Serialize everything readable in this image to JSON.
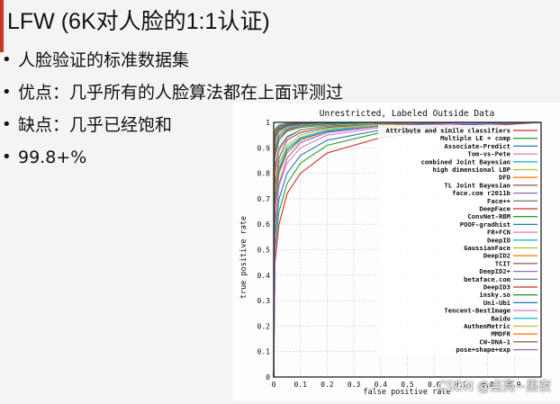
{
  "slide": {
    "title": "LFW (6K对人脸的1:1认证)",
    "bullets": [
      "人脸验证的标准数据集",
      "优点：几乎所有的人脸算法都在上面评测过",
      "缺点：几乎已经饱和",
      "99.8+%"
    ],
    "bullet_symbol": "•",
    "accent_color": "#c0392b"
  },
  "chart_data": {
    "type": "line",
    "title": "Unrestricted, Labeled Outside Data",
    "xlabel": "false positive rate",
    "ylabel": "true positive rate",
    "xlim": [
      0,
      1
    ],
    "ylim": [
      0,
      1
    ],
    "x_ticks": [
      "0",
      "0.1",
      "0.2",
      "0.3",
      "0.4",
      "0.5",
      "0.6",
      "0.7",
      "0.8",
      "0.9",
      "1"
    ],
    "y_ticks": [
      "0",
      "0.1",
      "0.2",
      "0.3",
      "0.4",
      "0.5",
      "0.6",
      "0.7",
      "0.8",
      "0.9",
      "1"
    ],
    "legend_position": "top-right",
    "series": [
      {
        "name": "Attribute and simile classifiers",
        "color": "#d62728",
        "x": [
          0,
          0.005,
          0.02,
          0.05,
          0.1,
          0.2,
          0.4,
          0.7,
          1
        ],
        "y": [
          0,
          0.45,
          0.6,
          0.72,
          0.8,
          0.88,
          0.94,
          0.98,
          1
        ]
      },
      {
        "name": "Multiple LE + comp",
        "color": "#2ca02c",
        "x": [
          0,
          0.005,
          0.02,
          0.05,
          0.1,
          0.2,
          0.4,
          0.7,
          1
        ],
        "y": [
          0,
          0.5,
          0.65,
          0.76,
          0.84,
          0.91,
          0.96,
          0.99,
          1
        ]
      },
      {
        "name": "Associate-Predict",
        "color": "#1f77b4",
        "x": [
          0,
          0.005,
          0.02,
          0.05,
          0.1,
          0.2,
          0.4,
          0.7,
          1
        ],
        "y": [
          0,
          0.55,
          0.7,
          0.8,
          0.87,
          0.93,
          0.97,
          0.99,
          1
        ]
      },
      {
        "name": "Tom-vs-Pete",
        "color": "#e377c2",
        "x": [
          0,
          0.005,
          0.02,
          0.05,
          0.1,
          0.2,
          0.4,
          0.7,
          1
        ],
        "y": [
          0,
          0.6,
          0.75,
          0.84,
          0.9,
          0.95,
          0.98,
          0.995,
          1
        ]
      },
      {
        "name": "combined Joint Bayesian",
        "color": "#17becf",
        "x": [
          0,
          0.005,
          0.02,
          0.05,
          0.1,
          0.2,
          0.4,
          0.7,
          1
        ],
        "y": [
          0,
          0.7,
          0.82,
          0.9,
          0.94,
          0.97,
          0.99,
          1,
          1
        ]
      },
      {
        "name": "high dimensional LBP",
        "color": "#bcbd22",
        "x": [
          0,
          0.005,
          0.02,
          0.05,
          0.1,
          0.2,
          0.4,
          0.7,
          1
        ],
        "y": [
          0,
          0.72,
          0.84,
          0.91,
          0.95,
          0.975,
          0.99,
          1,
          1
        ]
      },
      {
        "name": "DFD",
        "color": "#ff7f0e",
        "x": [
          0,
          0.005,
          0.02,
          0.05,
          0.1,
          0.2,
          0.4,
          0.7,
          1
        ],
        "y": [
          0,
          0.66,
          0.8,
          0.88,
          0.93,
          0.965,
          0.985,
          1,
          1
        ]
      },
      {
        "name": "TL Joint Bayesian",
        "color": "#8c564b",
        "x": [
          0,
          0.005,
          0.02,
          0.05,
          0.1,
          0.2,
          0.4,
          0.7,
          1
        ],
        "y": [
          0,
          0.75,
          0.86,
          0.93,
          0.96,
          0.98,
          0.995,
          1,
          1
        ]
      },
      {
        "name": "face.com r2011b",
        "color": "#9467bd",
        "x": [
          0,
          0.005,
          0.02,
          0.05,
          0.1,
          0.2,
          0.4,
          0.7,
          1
        ],
        "y": [
          0,
          0.8,
          0.89,
          0.94,
          0.97,
          0.985,
          0.995,
          1,
          1
        ]
      },
      {
        "name": "Face++",
        "color": "#7f7f7f",
        "x": [
          0,
          0.005,
          0.02,
          0.05,
          0.1,
          0.2,
          0.4,
          0.7,
          1
        ],
        "y": [
          0,
          0.9,
          0.95,
          0.975,
          0.99,
          0.995,
          1,
          1,
          1
        ]
      },
      {
        "name": "DeepFace",
        "color": "#d62728",
        "x": [
          0,
          0.005,
          0.02,
          0.05,
          0.1,
          0.2,
          0.4,
          0.7,
          1
        ],
        "y": [
          0,
          0.88,
          0.94,
          0.97,
          0.985,
          0.995,
          1,
          1,
          1
        ]
      },
      {
        "name": "ConvNet-RBM",
        "color": "#2ca02c",
        "x": [
          0,
          0.005,
          0.02,
          0.05,
          0.1,
          0.2,
          0.4,
          0.7,
          1
        ],
        "y": [
          0,
          0.86,
          0.93,
          0.965,
          0.98,
          0.99,
          1,
          1,
          1
        ]
      },
      {
        "name": "POOF-gradhist",
        "color": "#1f77b4",
        "x": [
          0,
          0.005,
          0.02,
          0.05,
          0.1,
          0.2,
          0.4,
          0.7,
          1
        ],
        "y": [
          0,
          0.68,
          0.81,
          0.89,
          0.935,
          0.965,
          0.985,
          1,
          1
        ]
      },
      {
        "name": "FR+FCN",
        "color": "#e377c2",
        "x": [
          0,
          0.005,
          0.02,
          0.05,
          0.1,
          0.2,
          0.4,
          0.7,
          1
        ],
        "y": [
          0,
          0.92,
          0.96,
          0.98,
          0.99,
          0.997,
          1,
          1,
          1
        ]
      },
      {
        "name": "DeepID",
        "color": "#17becf",
        "x": [
          0,
          0.005,
          0.02,
          0.05,
          0.1,
          0.2,
          0.4,
          0.7,
          1
        ],
        "y": [
          0,
          0.9,
          0.95,
          0.975,
          0.988,
          0.996,
          1,
          1,
          1
        ]
      },
      {
        "name": "GaussianFace",
        "color": "#bcbd22",
        "x": [
          0,
          0.005,
          0.02,
          0.05,
          0.1,
          0.2,
          0.4,
          0.7,
          1
        ],
        "y": [
          0,
          0.93,
          0.965,
          0.983,
          0.992,
          0.998,
          1,
          1,
          1
        ]
      },
      {
        "name": "DeepID2",
        "color": "#ff7f0e",
        "x": [
          0,
          0.005,
          0.02,
          0.05,
          0.1,
          0.2,
          0.4,
          0.7,
          1
        ],
        "y": [
          0,
          0.95,
          0.975,
          0.99,
          0.995,
          0.999,
          1,
          1,
          1
        ]
      },
      {
        "name": "TCIT",
        "color": "#8c564b",
        "x": [
          0,
          0.005,
          0.02,
          0.05,
          0.1,
          0.2,
          0.4,
          0.7,
          1
        ],
        "y": [
          0,
          0.94,
          0.97,
          0.985,
          0.993,
          0.998,
          1,
          1,
          1
        ]
      },
      {
        "name": "DeepID2+",
        "color": "#9467bd",
        "x": [
          0,
          0.005,
          0.02,
          0.05,
          0.1,
          0.2,
          0.4,
          0.7,
          1
        ],
        "y": [
          0,
          0.96,
          0.98,
          0.992,
          0.997,
          1,
          1,
          1,
          1
        ]
      },
      {
        "name": "betaface.com",
        "color": "#7f7f7f",
        "x": [
          0,
          0.005,
          0.02,
          0.05,
          0.1,
          0.2,
          0.4,
          0.7,
          1
        ],
        "y": [
          0,
          0.82,
          0.9,
          0.945,
          0.97,
          0.985,
          0.995,
          1,
          1
        ]
      },
      {
        "name": "DeepID3",
        "color": "#d62728",
        "x": [
          0,
          0.005,
          0.02,
          0.05,
          0.1,
          0.2,
          0.4,
          0.7,
          1
        ],
        "y": [
          0,
          0.965,
          0.985,
          0.994,
          0.998,
          1,
          1,
          1,
          1
        ]
      },
      {
        "name": "insky.so",
        "color": "#2ca02c",
        "x": [
          0,
          0.005,
          0.02,
          0.05,
          0.1,
          0.2,
          0.4,
          0.7,
          1
        ],
        "y": [
          0,
          0.95,
          0.975,
          0.989,
          0.995,
          0.999,
          1,
          1,
          1
        ]
      },
      {
        "name": "Uni-Ubi",
        "color": "#1f77b4",
        "x": [
          0,
          0.005,
          0.02,
          0.05,
          0.1,
          0.2,
          0.4,
          0.7,
          1
        ],
        "y": [
          0,
          0.94,
          0.972,
          0.987,
          0.994,
          0.998,
          1,
          1,
          1
        ]
      },
      {
        "name": "Tencent-BestImage",
        "color": "#e377c2",
        "x": [
          0,
          0.005,
          0.02,
          0.05,
          0.1,
          0.2,
          0.4,
          0.7,
          1
        ],
        "y": [
          0,
          0.97,
          0.988,
          0.995,
          0.998,
          1,
          1,
          1,
          1
        ]
      },
      {
        "name": "Baidu",
        "color": "#17becf",
        "x": [
          0,
          0.005,
          0.02,
          0.05,
          0.1,
          0.2,
          0.4,
          0.7,
          1
        ],
        "y": [
          0,
          0.975,
          0.99,
          0.996,
          0.999,
          1,
          1,
          1,
          1
        ]
      },
      {
        "name": "AuthenMetric",
        "color": "#bcbd22",
        "x": [
          0,
          0.005,
          0.02,
          0.05,
          0.1,
          0.2,
          0.4,
          0.7,
          1
        ],
        "y": [
          0,
          0.97,
          0.987,
          0.995,
          0.998,
          1,
          1,
          1,
          1
        ]
      },
      {
        "name": "MMDFR",
        "color": "#ff7f0e",
        "x": [
          0,
          0.005,
          0.02,
          0.05,
          0.1,
          0.2,
          0.4,
          0.7,
          1
        ],
        "y": [
          0,
          0.968,
          0.986,
          0.994,
          0.998,
          1,
          1,
          1,
          1
        ]
      },
      {
        "name": "CW-DNA-1",
        "color": "#8c564b",
        "x": [
          0,
          0.005,
          0.02,
          0.05,
          0.1,
          0.2,
          0.4,
          0.7,
          1
        ],
        "y": [
          0,
          0.965,
          0.985,
          0.994,
          0.997,
          1,
          1,
          1,
          1
        ]
      },
      {
        "name": "pose+shape+exp",
        "color": "#9467bd",
        "x": [
          0,
          0.005,
          0.02,
          0.05,
          0.1,
          0.2,
          0.4,
          0.7,
          1
        ],
        "y": [
          0,
          0.6,
          0.76,
          0.86,
          0.92,
          0.96,
          0.985,
          0.998,
          1
        ]
      }
    ]
  },
  "watermark": "CSDN @点亮~黑夜"
}
